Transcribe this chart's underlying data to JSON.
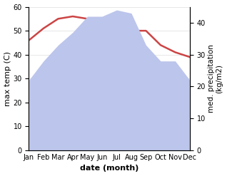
{
  "months": [
    "Jan",
    "Feb",
    "Mar",
    "Apr",
    "May",
    "Jun",
    "Jul",
    "Aug",
    "Sep",
    "Oct",
    "Nov",
    "Dec"
  ],
  "max_temp": [
    46,
    51,
    55,
    56,
    55,
    52,
    50,
    50,
    50,
    44,
    41,
    39
  ],
  "precipitation": [
    22,
    28,
    33,
    37,
    42,
    42,
    44,
    43,
    33,
    28,
    28,
    22
  ],
  "temp_ylim": [
    0,
    60
  ],
  "precip_ylim": [
    0,
    45
  ],
  "temp_color": "#cc4444",
  "precip_fill_color": "#bcc5eb",
  "xlabel": "date (month)",
  "ylabel_left": "max temp (C)",
  "ylabel_right": "med. precipitation\n(kg/m2)",
  "bg_color": "#ffffff",
  "label_fontsize": 8,
  "tick_fontsize": 7,
  "right_yticks": [
    0,
    10,
    20,
    30,
    40
  ],
  "left_yticks": [
    0,
    10,
    20,
    30,
    40,
    50,
    60
  ]
}
